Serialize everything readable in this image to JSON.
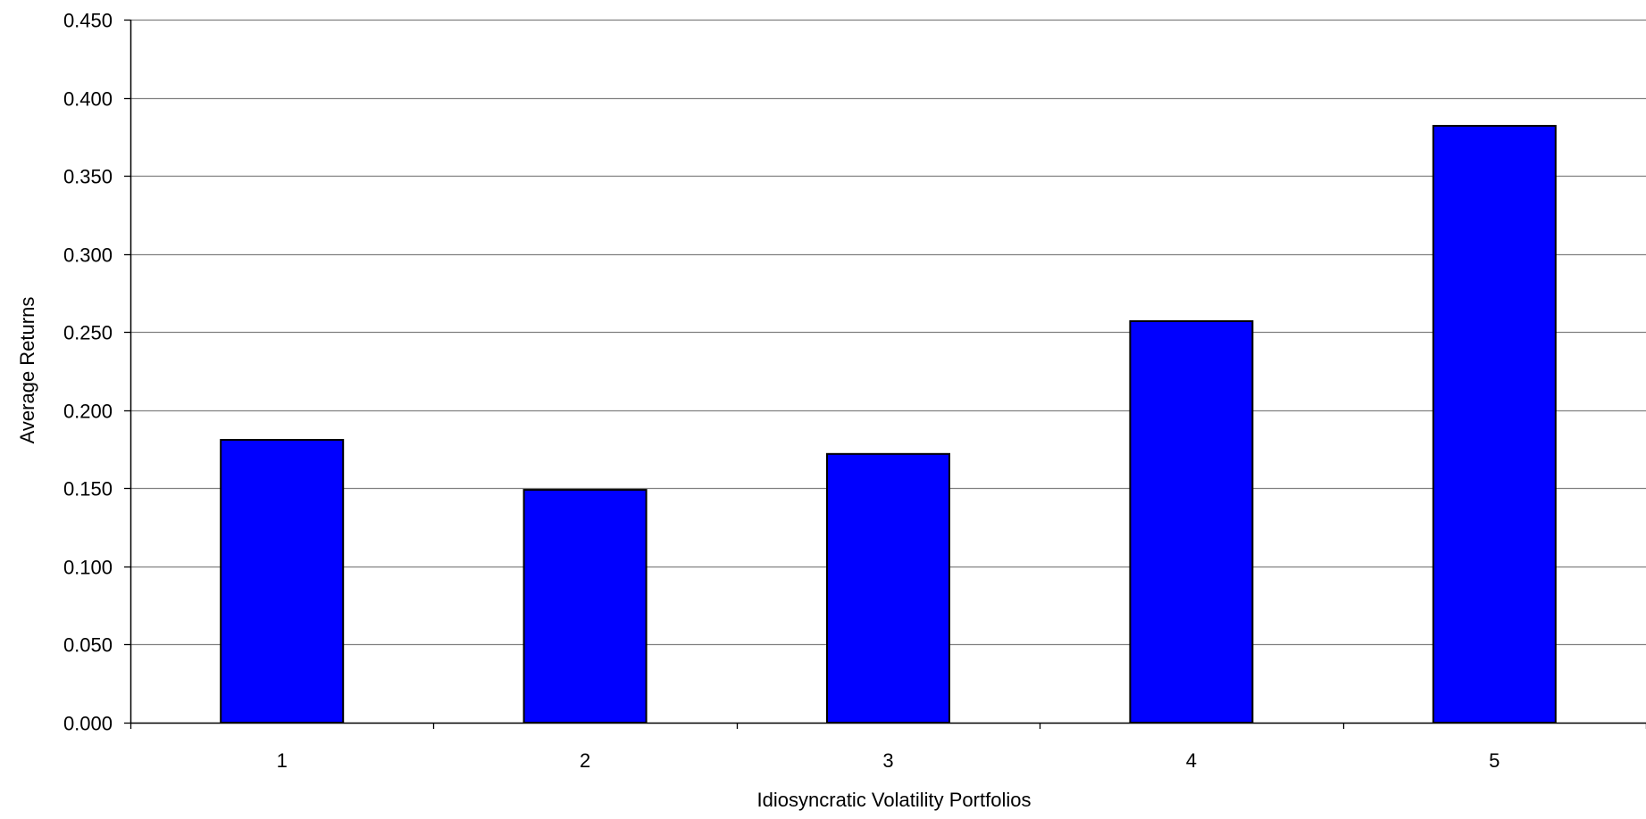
{
  "chart_data": {
    "type": "bar",
    "title": "",
    "xlabel": "Idiosyncratic Volatility Portfolios",
    "ylabel": "Average Returns",
    "categories": [
      "1",
      "2",
      "3",
      "4",
      "5"
    ],
    "values": [
      0.181,
      0.149,
      0.172,
      0.257,
      0.382
    ],
    "ylim": [
      0,
      0.45
    ],
    "yticks": [
      "0.000",
      "0.050",
      "0.100",
      "0.150",
      "0.200",
      "0.250",
      "0.300",
      "0.350",
      "0.400",
      "0.450"
    ],
    "grid": true,
    "legend": "none",
    "colors": {
      "bar_fill": "#0000ff",
      "bar_stroke": "#000000",
      "grid": "#808080",
      "axis": "#000000"
    }
  }
}
